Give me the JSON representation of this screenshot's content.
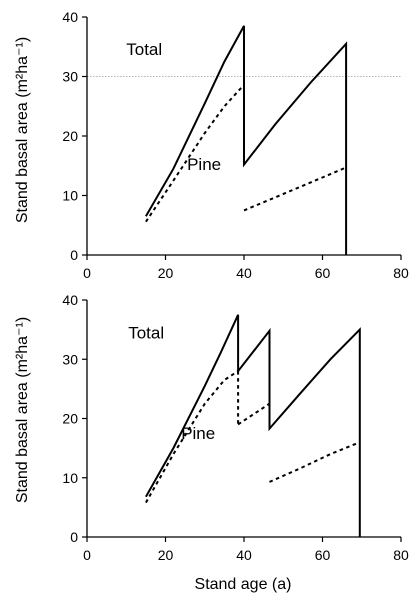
{
  "chart_data": [
    {
      "type": "line",
      "xlabel": "",
      "ylabel": "Stand basal area (m²ha⁻¹)",
      "xlim": [
        0,
        80
      ],
      "ylim": [
        0,
        40
      ],
      "xticks": [
        0,
        20,
        40,
        60,
        80
      ],
      "yticks": [
        0,
        10,
        20,
        30,
        40
      ],
      "grid": "single dotted reference line at y = 30",
      "reference_y": 30,
      "series": [
        {
          "name": "Total",
          "style": "solid",
          "label_at": [
            10,
            33.6
          ],
          "segments": [
            [
              [
                15,
                6.5
              ],
              [
                22,
                14.5
              ],
              [
                30,
                25.5
              ],
              [
                35,
                32.5
              ],
              [
                40,
                38.5
              ],
              [
                40,
                15.2
              ],
              [
                48,
                22
              ],
              [
                57,
                29
              ],
              [
                66,
                35.5
              ],
              [
                66,
                0
              ]
            ]
          ]
        },
        {
          "name": "Pine",
          "style": "dashed",
          "label_at": [
            25.5,
            14.3
          ],
          "segments": [
            [
              [
                15,
                5.6
              ],
              [
                22,
                12.5
              ],
              [
                30,
                20.5
              ],
              [
                35,
                25
              ],
              [
                40,
                28.6
              ]
            ],
            [
              [
                40,
                7.5
              ],
              [
                48,
                9.7
              ],
              [
                57,
                12.2
              ],
              [
                66,
                14.7
              ]
            ]
          ]
        }
      ]
    },
    {
      "type": "line",
      "xlabel": "Stand age (a)",
      "ylabel": "Stand basal area (m²ha⁻¹)",
      "xlim": [
        0,
        80
      ],
      "ylim": [
        0,
        40
      ],
      "xticks": [
        0,
        20,
        40,
        60,
        80
      ],
      "yticks": [
        0,
        10,
        20,
        30,
        40
      ],
      "grid": "off",
      "series": [
        {
          "name": "Total",
          "style": "solid",
          "label_at": [
            10.5,
            33.5
          ],
          "segments": [
            [
              [
                15,
                6.8
              ],
              [
                22,
                15
              ],
              [
                30,
                25.5
              ],
              [
                34,
                31
              ],
              [
                38.5,
                37.5
              ],
              [
                38.5,
                28
              ],
              [
                46.5,
                34.8
              ],
              [
                46.5,
                18.3
              ],
              [
                54,
                24
              ],
              [
                62,
                30
              ],
              [
                69.5,
                35
              ],
              [
                69.5,
                0
              ]
            ]
          ]
        },
        {
          "name": "Pine",
          "style": "dashed",
          "label_at": [
            24,
            16.5
          ],
          "segments": [
            [
              [
                15,
                5.8
              ],
              [
                22,
                14
              ],
              [
                30,
                22.5
              ],
              [
                35,
                26.5
              ],
              [
                38.5,
                28
              ]
            ],
            [
              [
                38.5,
                28
              ],
              [
                38.5,
                19
              ]
            ],
            [
              [
                38.5,
                19
              ],
              [
                46.5,
                22.5
              ]
            ],
            [
              [
                46.5,
                9.3
              ],
              [
                54,
                11.5
              ],
              [
                62,
                14
              ],
              [
                69.5,
                16
              ]
            ]
          ]
        }
      ]
    }
  ]
}
